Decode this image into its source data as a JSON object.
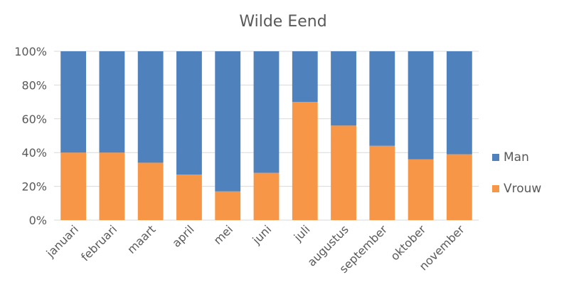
{
  "chart_data": {
    "type": "bar",
    "stacked": true,
    "normalized": true,
    "title": "Wilde Eend",
    "xlabel": "",
    "ylabel": "",
    "categories": [
      "januari",
      "februari",
      "maart",
      "april",
      "mei",
      "juni",
      "juli",
      "augustus",
      "september",
      "oktober",
      "november"
    ],
    "series": [
      {
        "name": "Vrouw",
        "color": "#f79646",
        "values": [
          40,
          40,
          34,
          27,
          17,
          28,
          70,
          56,
          44,
          36,
          39
        ]
      },
      {
        "name": "Man",
        "color": "#4f81bd",
        "values": [
          60,
          60,
          66,
          73,
          83,
          72,
          30,
          44,
          56,
          64,
          61
        ]
      }
    ],
    "ylim": [
      0,
      100
    ],
    "yticks": [
      "0%",
      "20%",
      "40%",
      "60%",
      "80%",
      "100%"
    ],
    "grid": true,
    "legend_position": "right"
  }
}
